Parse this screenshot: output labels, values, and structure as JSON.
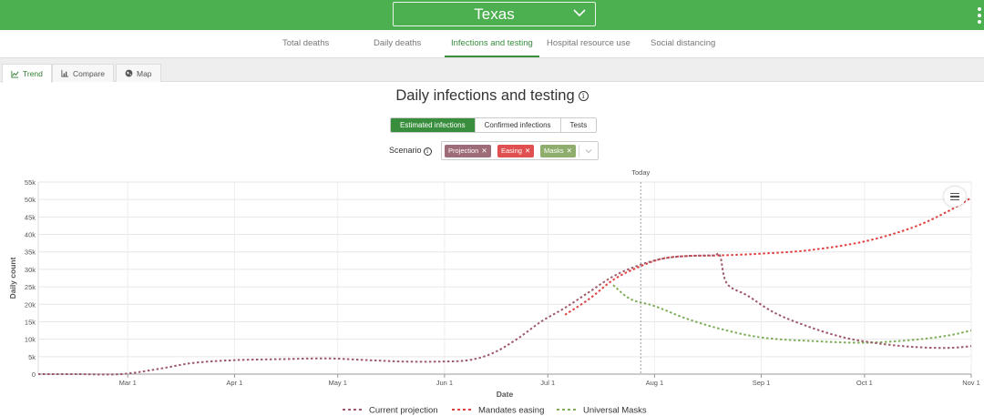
{
  "header": {
    "state": "Texas"
  },
  "nav": {
    "tabs": [
      "Total deaths",
      "Daily deaths",
      "Infections and testing",
      "Hospital resource use",
      "Social distancing"
    ],
    "active": "Infections and testing"
  },
  "view_tabs": {
    "trend": "Trend",
    "compare": "Compare",
    "map": "Map"
  },
  "page_title": "Daily infections and testing",
  "info_icon": "i",
  "measure_buttons": {
    "estimated": "Estimated infections",
    "confirmed": "Confirmed infections",
    "tests": "Tests"
  },
  "scenario": {
    "label": "Scenario",
    "chips": [
      {
        "label": "Projection",
        "color": "#9e6b78"
      },
      {
        "label": "Easing",
        "color": "#e05050"
      },
      {
        "label": "Masks",
        "color": "#8fae6e"
      }
    ]
  },
  "chart_data": {
    "type": "line",
    "xlabel": "Date",
    "ylabel": "Daily count",
    "x_ticks": [
      "Mar 1",
      "Apr 1",
      "May 1",
      "Jun 1",
      "Jul 1",
      "Aug 1",
      "Sep 1",
      "Oct 1",
      "Nov 1"
    ],
    "y_ticks": [
      "0",
      "5k",
      "10k",
      "15k",
      "20k",
      "25k",
      "30k",
      "35k",
      "40k",
      "45k",
      "50k",
      "55k"
    ],
    "ylim": [
      0,
      55000
    ],
    "xlim": [
      "2020-02-04",
      "2020-11-01"
    ],
    "today_label": "Today",
    "today": "2020-07-28",
    "grid": true,
    "legend_position": "bottom",
    "series": [
      {
        "name": "Current projection",
        "color": "#9e5a6a",
        "points": [
          [
            "2020-02-04",
            0
          ],
          [
            "2020-02-15",
            0
          ],
          [
            "2020-02-28",
            0
          ],
          [
            "2020-03-10",
            1500
          ],
          [
            "2020-03-20",
            3200
          ],
          [
            "2020-04-01",
            4000
          ],
          [
            "2020-04-15",
            4300
          ],
          [
            "2020-04-28",
            4500
          ],
          [
            "2020-05-10",
            4000
          ],
          [
            "2020-05-20",
            3600
          ],
          [
            "2020-05-31",
            3600
          ],
          [
            "2020-06-08",
            4000
          ],
          [
            "2020-06-15",
            6000
          ],
          [
            "2020-06-22",
            10000
          ],
          [
            "2020-06-29",
            15000
          ],
          [
            "2020-07-06",
            19000
          ],
          [
            "2020-07-13",
            23500
          ],
          [
            "2020-07-20",
            28000
          ],
          [
            "2020-07-27",
            31000
          ],
          [
            "2020-08-03",
            33000
          ],
          [
            "2020-08-10",
            33800
          ],
          [
            "2020-08-18",
            34000
          ],
          [
            "2020-08-20",
            34000
          ],
          [
            "2020-08-22",
            26000
          ],
          [
            "2020-08-28",
            22500
          ],
          [
            "2020-09-05",
            17500
          ],
          [
            "2020-09-15",
            13500
          ],
          [
            "2020-09-25",
            10500
          ],
          [
            "2020-10-05",
            8800
          ],
          [
            "2020-10-15",
            7800
          ],
          [
            "2020-10-25",
            7500
          ],
          [
            "2020-11-01",
            8000
          ]
        ]
      },
      {
        "name": "Mandates easing",
        "color": "#e04040",
        "points": [
          [
            "2020-07-06",
            17000
          ],
          [
            "2020-07-13",
            21500
          ],
          [
            "2020-07-20",
            27000
          ],
          [
            "2020-07-27",
            30500
          ],
          [
            "2020-08-03",
            33000
          ],
          [
            "2020-08-10",
            33800
          ],
          [
            "2020-08-20",
            34000
          ],
          [
            "2020-09-01",
            34500
          ],
          [
            "2020-09-15",
            35500
          ],
          [
            "2020-10-01",
            38000
          ],
          [
            "2020-10-15",
            42000
          ],
          [
            "2020-10-25",
            46500
          ],
          [
            "2020-11-01",
            50500
          ]
        ]
      },
      {
        "name": "Universal Masks",
        "color": "#7fad5a",
        "points": [
          [
            "2020-07-20",
            25500
          ],
          [
            "2020-07-25",
            21500
          ],
          [
            "2020-08-01",
            19500
          ],
          [
            "2020-08-10",
            16000
          ],
          [
            "2020-08-20",
            13000
          ],
          [
            "2020-09-01",
            10500
          ],
          [
            "2020-09-15",
            9500
          ],
          [
            "2020-10-01",
            9000
          ],
          [
            "2020-10-15",
            9800
          ],
          [
            "2020-10-25",
            11000
          ],
          [
            "2020-11-01",
            12500
          ]
        ]
      }
    ]
  }
}
